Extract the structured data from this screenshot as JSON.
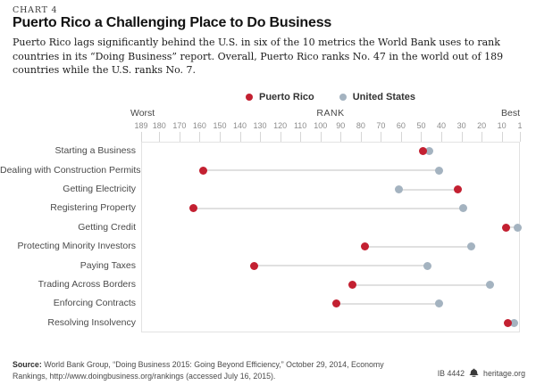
{
  "header": {
    "chart_label": "CHART 4",
    "title": "Puerto Rico a Challenging Place to Do Business",
    "description": "Puerto Rico lags significantly behind the U.S. in six of the 10 metrics the World Bank uses to rank countries in its “Doing Business” report. Overall, Puerto Rico ranks No. 47 in the world out of 189 countries while the U.S. ranks No. 7."
  },
  "chart_data": {
    "type": "scatter",
    "variant": "dumbbell-dot-plot",
    "title": "Puerto Rico a Challenging Place to Do Business",
    "categories": [
      "Starting a Business",
      "Dealing with Construction Permits",
      "Getting Electricity",
      "Registering Property",
      "Getting Credit",
      "Protecting Minority Investors",
      "Paying Taxes",
      "Trading Across Borders",
      "Enforcing Contracts",
      "Resolving Insolvency"
    ],
    "series": [
      {
        "name": "Puerto Rico",
        "color": "#c32031",
        "values": [
          49,
          158,
          32,
          163,
          8,
          78,
          133,
          84,
          92,
          7
        ]
      },
      {
        "name": "United States",
        "color": "#a4b3c0",
        "values": [
          46,
          41,
          61,
          29,
          2,
          25,
          47,
          16,
          41,
          4
        ]
      }
    ],
    "axis": {
      "label_worst": "Worst",
      "label_rank": "RANK",
      "label_best": "Best",
      "ticks": [
        189,
        180,
        170,
        160,
        150,
        140,
        130,
        120,
        110,
        100,
        90,
        80,
        70,
        60,
        50,
        40,
        30,
        20,
        10,
        1
      ],
      "range": [
        189,
        1
      ],
      "reversed": true,
      "grid": false,
      "legend_position": "top-center"
    },
    "connector_color": "#e0e0e0"
  },
  "footer": {
    "source_label": "Source:",
    "source_rest": " World Bank Group, “Doing Business 2015: Going Beyond Efficiency,” October 29, 2014, Economy Rankings, http://www.doingbusiness.org/rankings (accessed July 16, 2015).",
    "doc_id": "IB 4442",
    "site": "heritage.org"
  }
}
